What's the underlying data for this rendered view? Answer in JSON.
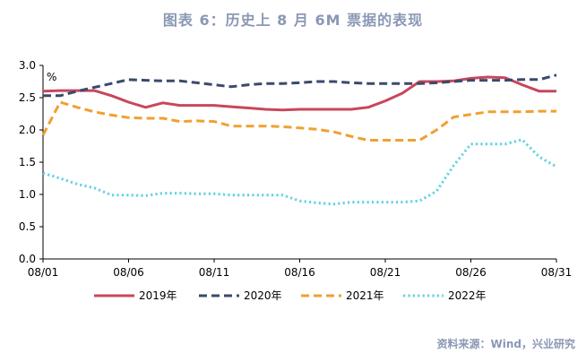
{
  "title": "图表 6：历史上 8 月 6M 票据的表现",
  "source": "资料来源：Wind，兴业研究",
  "chart_data": {
    "type": "line",
    "title": "图表 6：历史上 8 月 6M 票据的表现",
    "ylabel": "%",
    "ylim": [
      0,
      3.0
    ],
    "yticks": [
      "0.0",
      "0.5",
      "1.0",
      "1.5",
      "2.0",
      "2.5",
      "3.0"
    ],
    "x": [
      "08/01",
      "08/02",
      "08/03",
      "08/04",
      "08/05",
      "08/06",
      "08/07",
      "08/08",
      "08/09",
      "08/10",
      "08/11",
      "08/12",
      "08/13",
      "08/14",
      "08/15",
      "08/16",
      "08/17",
      "08/18",
      "08/19",
      "08/20",
      "08/21",
      "08/22",
      "08/23",
      "08/24",
      "08/25",
      "08/26",
      "08/27",
      "08/28",
      "08/29",
      "08/30",
      "08/31"
    ],
    "xticks": [
      "08/01",
      "08/06",
      "08/11",
      "08/16",
      "08/21",
      "08/26",
      "08/31"
    ],
    "legend_position": "bottom",
    "series": [
      {
        "name": "2019年",
        "color": "#c8475c",
        "dash": "solid",
        "values": [
          2.6,
          2.61,
          2.61,
          2.61,
          2.53,
          2.43,
          2.35,
          2.42,
          2.38,
          2.38,
          2.38,
          2.36,
          2.34,
          2.32,
          2.31,
          2.32,
          2.32,
          2.32,
          2.32,
          2.35,
          2.45,
          2.57,
          2.75,
          2.75,
          2.76,
          2.8,
          2.82,
          2.81,
          2.7,
          2.6,
          2.6
        ]
      },
      {
        "name": "2020年",
        "color": "#3a4a6b",
        "dash": "dash",
        "values": [
          2.53,
          2.53,
          2.6,
          2.66,
          2.72,
          2.78,
          2.77,
          2.76,
          2.76,
          2.73,
          2.7,
          2.67,
          2.7,
          2.72,
          2.72,
          2.73,
          2.75,
          2.75,
          2.73,
          2.72,
          2.72,
          2.72,
          2.72,
          2.73,
          2.75,
          2.77,
          2.77,
          2.77,
          2.78,
          2.78,
          2.85
        ]
      },
      {
        "name": "2021年",
        "color": "#f0a030",
        "dash": "dash",
        "values": [
          1.92,
          2.43,
          2.35,
          2.28,
          2.23,
          2.19,
          2.18,
          2.18,
          2.13,
          2.14,
          2.13,
          2.06,
          2.06,
          2.06,
          2.05,
          2.03,
          2.01,
          1.97,
          1.9,
          1.84,
          1.84,
          1.84,
          1.84,
          2.0,
          2.2,
          2.24,
          2.28,
          2.28,
          2.28,
          2.29,
          2.29
        ]
      },
      {
        "name": "2022年",
        "color": "#5fd3e0",
        "dash": "dot",
        "values": [
          1.33,
          1.25,
          1.16,
          1.1,
          0.99,
          0.99,
          0.98,
          1.02,
          1.02,
          1.01,
          1.01,
          0.99,
          0.99,
          0.99,
          0.99,
          0.9,
          0.87,
          0.85,
          0.88,
          0.88,
          0.88,
          0.88,
          0.9,
          1.05,
          1.45,
          1.78,
          1.78,
          1.78,
          1.85,
          1.58,
          1.43
        ]
      }
    ]
  }
}
